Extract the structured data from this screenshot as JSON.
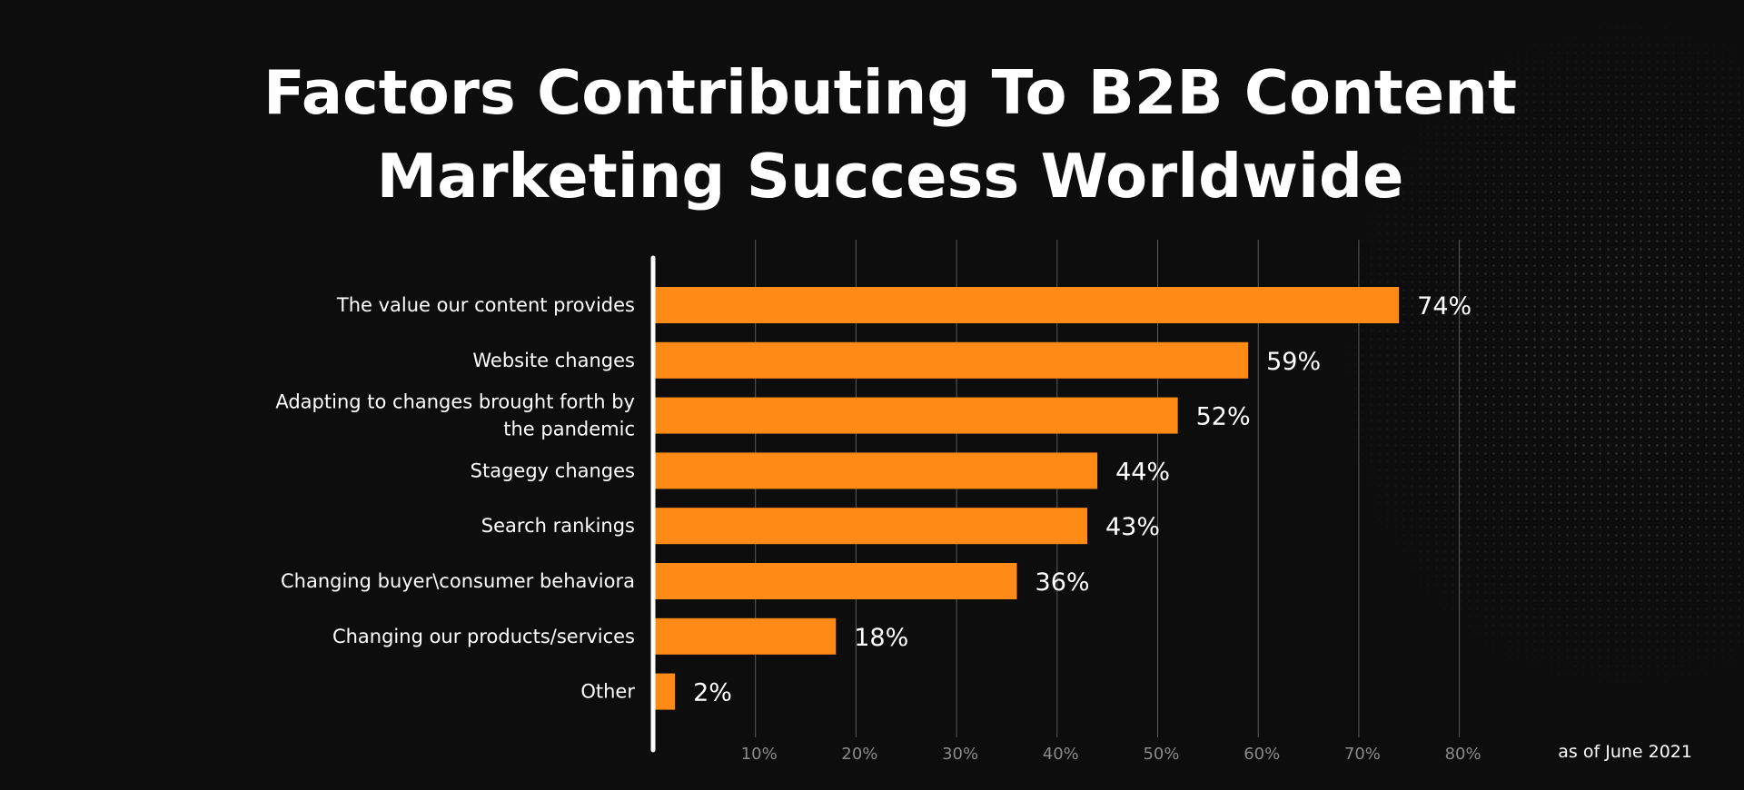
{
  "chart_data": {
    "type": "bar",
    "orientation": "horizontal",
    "title": "Factors Contributing To B2B Content Marketing Success Worldwide",
    "categories": [
      "The value our content provides",
      "Website changes",
      "Adapting to changes brought forth by the pandemic",
      "Stagegy changes",
      "Search rankings",
      "Changing buyer\\consumer behaviora",
      "Changing our products/services",
      "Other"
    ],
    "values": [
      74,
      59,
      52,
      44,
      43,
      36,
      18,
      2
    ],
    "value_labels": [
      "74%",
      "59%",
      "52%",
      "44%",
      "43%",
      "36%",
      "18%",
      "2%"
    ],
    "x_ticks": [
      "10%",
      "20%",
      "30%",
      "40%",
      "50%",
      "60%",
      "70%",
      "80%"
    ],
    "xlim": [
      0,
      80
    ],
    "grid": true,
    "bar_color": "#ff8a16",
    "footnote": "as of June 2021"
  }
}
